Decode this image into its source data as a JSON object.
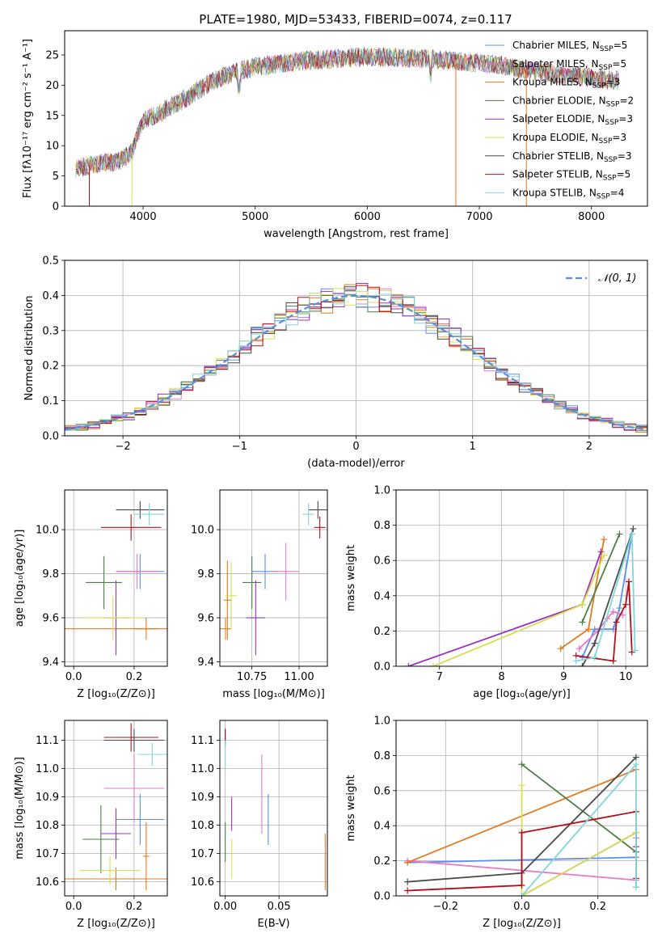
{
  "figure": {
    "title": "PLATE=1980, MJD=53433, FIBERID=0074, z=0.117"
  },
  "colors": {
    "chabrier_miles": "#5b8ff0",
    "salpeter_miles": "#e879c8",
    "kroupa_miles": "#e07b1f",
    "chabrier_elodie": "#4c7f45",
    "salpeter_elodie": "#9b30c0",
    "kroupa_elodie": "#d6e04a",
    "chabrier_stelib": "#4a4a4a",
    "salpeter_stelib": "#b0101b",
    "kroupa_stelib": "#7fd6dc",
    "normal": "#5b8fd8"
  },
  "chart_data": [
    {
      "id": "spectrum",
      "type": "line",
      "xlabel": "wavelength [Angstrom, rest frame]",
      "ylabel": "Flux [fλ10⁻¹⁷ erg cm⁻² s⁻¹ A⁻¹]",
      "xlim": [
        3300,
        8500
      ],
      "ylim": [
        0,
        29
      ],
      "xticks": [
        4000,
        5000,
        6000,
        7000,
        8000
      ],
      "yticks": [
        0,
        5,
        10,
        15,
        20,
        25
      ],
      "legend_position": "top-right",
      "legend": [
        {
          "name": "Chabrier MILES, N",
          "sub": "SSP",
          "val": "=5",
          "color_key": "chabrier_miles"
        },
        {
          "name": "Salpeter MILES, N",
          "sub": "SSP",
          "val": "=5",
          "color_key": "salpeter_miles"
        },
        {
          "name": "Kroupa MILES, N",
          "sub": "SSP",
          "val": "=3",
          "color_key": "kroupa_miles"
        },
        {
          "name": "Chabrier ELODIE, N",
          "sub": "SSP",
          "val": "=2",
          "color_key": "chabrier_elodie"
        },
        {
          "name": "Salpeter ELODIE, N",
          "sub": "SSP",
          "val": "=3",
          "color_key": "salpeter_elodie"
        },
        {
          "name": "Kroupa ELODIE, N",
          "sub": "SSP",
          "val": "=3",
          "color_key": "kroupa_elodie"
        },
        {
          "name": "Chabrier STELIB, N",
          "sub": "SSP",
          "val": "=3",
          "color_key": "chabrier_stelib"
        },
        {
          "name": "Salpeter STELIB, N",
          "sub": "SSP",
          "val": "=5",
          "color_key": "salpeter_stelib"
        },
        {
          "name": "Kroupa STELIB, N",
          "sub": "SSP",
          "val": "=4",
          "color_key": "kroupa_stelib"
        }
      ],
      "continuum": [
        [
          3400,
          6.3
        ],
        [
          3600,
          7.0
        ],
        [
          3800,
          7.5
        ],
        [
          3900,
          9.0
        ],
        [
          4000,
          14.0
        ],
        [
          4200,
          16.0
        ],
        [
          4400,
          18.0
        ],
        [
          4600,
          20.5
        ],
        [
          4800,
          22.0
        ],
        [
          5000,
          23.0
        ],
        [
          5200,
          23.5
        ],
        [
          5400,
          24.0
        ],
        [
          5600,
          24.2
        ],
        [
          5800,
          24.5
        ],
        [
          6000,
          24.7
        ],
        [
          6200,
          24.6
        ],
        [
          6400,
          24.5
        ],
        [
          6600,
          24.3
        ],
        [
          6800,
          24.0
        ],
        [
          7000,
          23.6
        ],
        [
          7200,
          23.3
        ],
        [
          7400,
          22.6
        ],
        [
          7600,
          22.0
        ],
        [
          7800,
          21.6
        ],
        [
          8000,
          21.2
        ],
        [
          8200,
          20.8
        ]
      ]
    },
    {
      "id": "residuals",
      "type": "histogram",
      "xlabel": "(data-model)/error",
      "ylabel": "Normed distribution",
      "xlim": [
        -2.5,
        2.5
      ],
      "ylim": [
        0,
        0.5
      ],
      "xticks": [
        -2,
        -1,
        0,
        1,
        2
      ],
      "xticklabels": [
        "−2",
        "−1",
        "0",
        "1",
        "2"
      ],
      "yticks": [
        0,
        0.1,
        0.2,
        0.3,
        0.4,
        0.5
      ],
      "yticklabels": [
        "0.0",
        "0.1",
        "0.2",
        "0.3",
        "0.4",
        "0.5"
      ],
      "grid": true,
      "legend_position": "top-right",
      "legend": [
        {
          "name": "𝒩(0, 1)",
          "color_key": "normal"
        }
      ]
    },
    {
      "id": "age_vs_z",
      "type": "errorbar",
      "xlabel": "Z [log₁₀(Z/Z⊙)]",
      "ylabel": "age  [log₁₀(age/yr)]",
      "xlim": [
        -0.03,
        0.31
      ],
      "ylim": [
        9.38,
        10.18
      ],
      "xticks": [
        0.0,
        0.2
      ],
      "xticklabels": [
        "0.0",
        "0.2"
      ],
      "yticks": [
        9.4,
        9.6,
        9.8,
        10.0
      ],
      "yticklabels": [
        "9.4",
        "9.6",
        "9.8",
        "10.0"
      ],
      "grid": true,
      "points": [
        {
          "key": "chabrier_miles",
          "x": 0.22,
          "xerr": 0.08,
          "y": 9.81,
          "yerr": 0.08
        },
        {
          "key": "salpeter_miles",
          "x": 0.21,
          "xerr": 0.07,
          "y": 9.81,
          "yerr": 0.08
        },
        {
          "key": "kroupa_miles",
          "x": 0.24,
          "xerr": 0.04,
          "y": 9.55,
          "yerr": 0.05
        },
        {
          "key": "kroupa_miles",
          "x": 0.14,
          "xerr": 0.17,
          "y": 9.55,
          "yerr": 0.04
        },
        {
          "key": "chabrier_elodie",
          "x": 0.1,
          "xerr": 0.06,
          "y": 9.76,
          "yerr": 0.12
        },
        {
          "key": "salpeter_elodie",
          "x": 0.14,
          "xerr": 0.04,
          "y": 9.6,
          "yerr": 0.17
        },
        {
          "key": "kroupa_elodie",
          "x": 0.13,
          "xerr": 0.1,
          "y": 9.6,
          "yerr": 0.1
        },
        {
          "key": "chabrier_stelib",
          "x": 0.22,
          "xerr": 0.08,
          "y": 10.09,
          "yerr": 0.04
        },
        {
          "key": "salpeter_stelib",
          "x": 0.19,
          "xerr": 0.1,
          "y": 10.01,
          "yerr": 0.06
        },
        {
          "key": "kroupa_stelib",
          "x": 0.25,
          "xerr": 0.05,
          "y": 10.07,
          "yerr": 0.05
        }
      ]
    },
    {
      "id": "age_vs_mass",
      "type": "errorbar",
      "xlabel": "mass [log₁₀(M/M⊙)]",
      "ylabel": "",
      "xlim": [
        10.58,
        11.15
      ],
      "ylim": [
        9.38,
        10.18
      ],
      "xticks": [
        10.75,
        11.0
      ],
      "xticklabels": [
        "10.75",
        "11.00"
      ],
      "yticks": [
        9.4,
        9.6,
        9.8,
        10.0
      ],
      "yticklabels": [
        "9.4",
        "9.6",
        "9.8",
        "10.0"
      ],
      "grid": true,
      "points": [
        {
          "key": "chabrier_miles",
          "x": 10.82,
          "xerr": 0.07,
          "y": 9.81,
          "yerr": 0.08
        },
        {
          "key": "salpeter_miles",
          "x": 10.93,
          "xerr": 0.07,
          "y": 9.81,
          "yerr": 0.13
        },
        {
          "key": "kroupa_miles",
          "x": 10.61,
          "xerr": 0.03,
          "y": 9.55,
          "yerr": 0.05
        },
        {
          "key": "kroupa_miles",
          "x": 10.62,
          "xerr": 0.02,
          "y": 9.68,
          "yerr": 0.18
        },
        {
          "key": "chabrier_elodie",
          "x": 10.75,
          "xerr": 0.05,
          "y": 9.76,
          "yerr": 0.12
        },
        {
          "key": "salpeter_elodie",
          "x": 10.77,
          "xerr": 0.05,
          "y": 9.6,
          "yerr": 0.17
        },
        {
          "key": "kroupa_elodie",
          "x": 10.64,
          "xerr": 0.03,
          "y": 9.7,
          "yerr": 0.15
        },
        {
          "key": "chabrier_stelib",
          "x": 11.1,
          "xerr": 0.05,
          "y": 10.09,
          "yerr": 0.04
        },
        {
          "key": "salpeter_stelib",
          "x": 11.11,
          "xerr": 0.03,
          "y": 10.01,
          "yerr": 0.05
        },
        {
          "key": "kroupa_stelib",
          "x": 11.05,
          "xerr": 0.03,
          "y": 10.07,
          "yerr": 0.05
        }
      ]
    },
    {
      "id": "weight_vs_age",
      "type": "line",
      "xlabel": "age  [log₁₀(age/yr)]",
      "ylabel": "mass weight",
      "xlim": [
        6.3,
        10.35
      ],
      "ylim": [
        0,
        1
      ],
      "xticks": [
        7,
        8,
        9,
        10
      ],
      "xticklabels": [
        "7",
        "8",
        "9",
        "10"
      ],
      "yticks": [
        0,
        0.2,
        0.4,
        0.6,
        0.8,
        1.0
      ],
      "yticklabels": [
        "0.0",
        "0.2",
        "0.4",
        "0.6",
        "0.8",
        "1.0"
      ],
      "grid": true,
      "series": [
        {
          "key": "chabrier_miles",
          "x": [
            9.3,
            9.5,
            9.8,
            9.9,
            10.1
          ],
          "y": [
            0.05,
            0.21,
            0.21,
            0.33,
            0.75
          ]
        },
        {
          "key": "salpeter_miles",
          "x": [
            9.25,
            9.55,
            9.7,
            9.8,
            9.95
          ],
          "y": [
            0.1,
            0.2,
            0.27,
            0.31,
            0.29
          ]
        },
        {
          "key": "kroupa_miles",
          "x": [
            8.95,
            9.4,
            9.65
          ],
          "y": [
            0.1,
            0.21,
            0.72
          ]
        },
        {
          "key": "chabrier_elodie",
          "x": [
            9.3,
            9.9
          ],
          "y": [
            0.25,
            0.75
          ]
        },
        {
          "key": "salpeter_elodie",
          "x": [
            6.5,
            9.3,
            9.6
          ],
          "y": [
            0.0,
            0.35,
            0.65
          ]
        },
        {
          "key": "kroupa_elodie",
          "x": [
            6.9,
            9.3,
            9.65
          ],
          "y": [
            0.0,
            0.35,
            0.63
          ]
        },
        {
          "key": "chabrier_stelib",
          "x": [
            9.3,
            9.5,
            10.12
          ],
          "y": [
            0.0,
            0.13,
            0.78
          ]
        },
        {
          "key": "salpeter_stelib",
          "x": [
            9.2,
            9.8,
            9.85,
            10.0,
            10.05,
            10.1
          ],
          "y": [
            0.06,
            0.03,
            0.25,
            0.35,
            0.48,
            0.08
          ]
        },
        {
          "key": "kroupa_stelib",
          "x": [
            9.2,
            9.5,
            10.1,
            10.15
          ],
          "y": [
            0.03,
            0.05,
            0.75,
            0.09
          ]
        }
      ]
    },
    {
      "id": "mass_vs_z",
      "type": "errorbar",
      "xlabel": "Z [log₁₀(Z/Z⊙)]",
      "ylabel": "mass [log₁₀(M/M⊙)]",
      "xlim": [
        -0.03,
        0.31
      ],
      "ylim": [
        10.55,
        11.17
      ],
      "xticks": [
        0.0,
        0.2
      ],
      "xticklabels": [
        "0.0",
        "0.2"
      ],
      "yticks": [
        10.6,
        10.7,
        10.8,
        10.9,
        11.0,
        11.1
      ],
      "yticklabels": [
        "10.6",
        "10.7",
        "10.8",
        "10.9",
        "11.0",
        "11.1"
      ],
      "grid": true,
      "points": [
        {
          "key": "chabrier_miles",
          "x": 0.22,
          "xerr": 0.08,
          "y": 10.82,
          "yerr": 0.09
        },
        {
          "key": "salpeter_miles",
          "x": 0.2,
          "xerr": 0.1,
          "y": 10.93,
          "yerr": 0.12
        },
        {
          "key": "kroupa_miles",
          "x": 0.14,
          "xerr": 0.17,
          "y": 10.61,
          "yerr": 0.04
        },
        {
          "key": "kroupa_miles",
          "x": 0.24,
          "xerr": 0.01,
          "y": 10.69,
          "yerr": 0.12
        },
        {
          "key": "chabrier_elodie",
          "x": 0.09,
          "xerr": 0.06,
          "y": 10.75,
          "yerr": 0.12
        },
        {
          "key": "salpeter_elodie",
          "x": 0.14,
          "xerr": 0.05,
          "y": 10.77,
          "yerr": 0.09
        },
        {
          "key": "kroupa_elodie",
          "x": 0.12,
          "xerr": 0.1,
          "y": 10.64,
          "yerr": 0.05
        },
        {
          "key": "chabrier_stelib",
          "x": 0.2,
          "xerr": 0.1,
          "y": 11.1,
          "yerr": 0.04
        },
        {
          "key": "salpeter_stelib",
          "x": 0.19,
          "xerr": 0.09,
          "y": 11.11,
          "yerr": 0.05
        },
        {
          "key": "kroupa_stelib",
          "x": 0.26,
          "xerr": 0.05,
          "y": 11.05,
          "yerr": 0.04
        }
      ]
    },
    {
      "id": "mass_vs_ebv",
      "type": "errorbar",
      "xlabel": "E(B-V)",
      "ylabel": "",
      "xlim": [
        -0.005,
        0.095
      ],
      "ylim": [
        10.55,
        11.17
      ],
      "xticks": [
        0.0,
        0.05
      ],
      "xticklabels": [
        "0.00",
        "0.05"
      ],
      "yticks": [
        10.6,
        10.7,
        10.8,
        10.9,
        11.0,
        11.1
      ],
      "yticklabels": [
        "10.6",
        "10.7",
        "10.8",
        "10.9",
        "11.0",
        "11.1"
      ],
      "grid": true,
      "points": [
        {
          "key": "chabrier_miles",
          "x": 0.04,
          "xerr": 0,
          "y": 10.82,
          "yerr": 0.09
        },
        {
          "key": "salpeter_miles",
          "x": 0.034,
          "xerr": 0,
          "y": 10.91,
          "yerr": 0.14
        },
        {
          "key": "kroupa_miles",
          "x": 0.093,
          "xerr": 0,
          "y": 10.67,
          "yerr": 0.1
        },
        {
          "key": "chabrier_elodie",
          "x": 0.0,
          "xerr": 0,
          "y": 10.74,
          "yerr": 0.07
        },
        {
          "key": "salpeter_elodie",
          "x": 0.006,
          "xerr": 0,
          "y": 10.84,
          "yerr": 0.06
        },
        {
          "key": "kroupa_elodie",
          "x": 0.006,
          "xerr": 0,
          "y": 10.68,
          "yerr": 0.07
        },
        {
          "key": "chabrier_stelib",
          "x": 0.0,
          "xerr": 0,
          "y": 11.11,
          "yerr": 0.03
        },
        {
          "key": "salpeter_stelib",
          "x": 0.0,
          "xerr": 0,
          "y": 11.12,
          "yerr": 0.02
        },
        {
          "key": "kroupa_stelib",
          "x": 0.0,
          "xerr": 0,
          "y": 11.05,
          "yerr": 0.05
        }
      ]
    },
    {
      "id": "weight_vs_z",
      "type": "line",
      "xlabel": "Z [log₁₀(Z/Z⊙)]",
      "ylabel": "mass weight",
      "xlim": [
        -0.33,
        0.33
      ],
      "ylim": [
        0,
        1
      ],
      "xticks": [
        -0.2,
        0.0,
        0.2
      ],
      "xticklabels": [
        "−0.2",
        "0.0",
        "0.2"
      ],
      "yticks": [
        0,
        0.2,
        0.4,
        0.6,
        0.8,
        1.0
      ],
      "yticklabels": [
        "0.0",
        "0.2",
        "0.4",
        "0.6",
        "0.8",
        "1.0"
      ],
      "grid": true,
      "series": [
        {
          "key": "chabrier_miles",
          "x": [
            -0.3,
            0.3,
            0.3
          ],
          "y": [
            0.19,
            0.22,
            0.05
          ]
        },
        {
          "key": "salpeter_miles",
          "x": [
            -0.3,
            0.3,
            0.3
          ],
          "y": [
            0.2,
            0.09,
            0.33
          ]
        },
        {
          "key": "kroupa_miles",
          "x": [
            -0.3,
            0.3
          ],
          "y": [
            0.19,
            0.72
          ]
        },
        {
          "key": "chabrier_elodie",
          "x": [
            0.0,
            0.3
          ],
          "y": [
            0.75,
            0.25
          ]
        },
        {
          "key": "salpeter_elodie",
          "x": [
            0.0,
            0.3,
            0.3
          ],
          "y": [
            0.0,
            0.36,
            0.28
          ]
        },
        {
          "key": "kroupa_elodie",
          "x": [
            0.0,
            0.0,
            0.3
          ],
          "y": [
            0.63,
            0.0,
            0.36
          ]
        },
        {
          "key": "chabrier_stelib",
          "x": [
            -0.3,
            0.0,
            0.3
          ],
          "y": [
            0.08,
            0.13,
            0.79
          ]
        },
        {
          "key": "salpeter_stelib",
          "x": [
            -0.3,
            0.0,
            0.0,
            0.3,
            0.3
          ],
          "y": [
            0.03,
            0.06,
            0.36,
            0.48,
            0.1
          ]
        },
        {
          "key": "kroupa_stelib",
          "x": [
            0.0,
            0.3,
            0.3
          ],
          "y": [
            0.0,
            0.75,
            0.05
          ]
        }
      ]
    }
  ]
}
